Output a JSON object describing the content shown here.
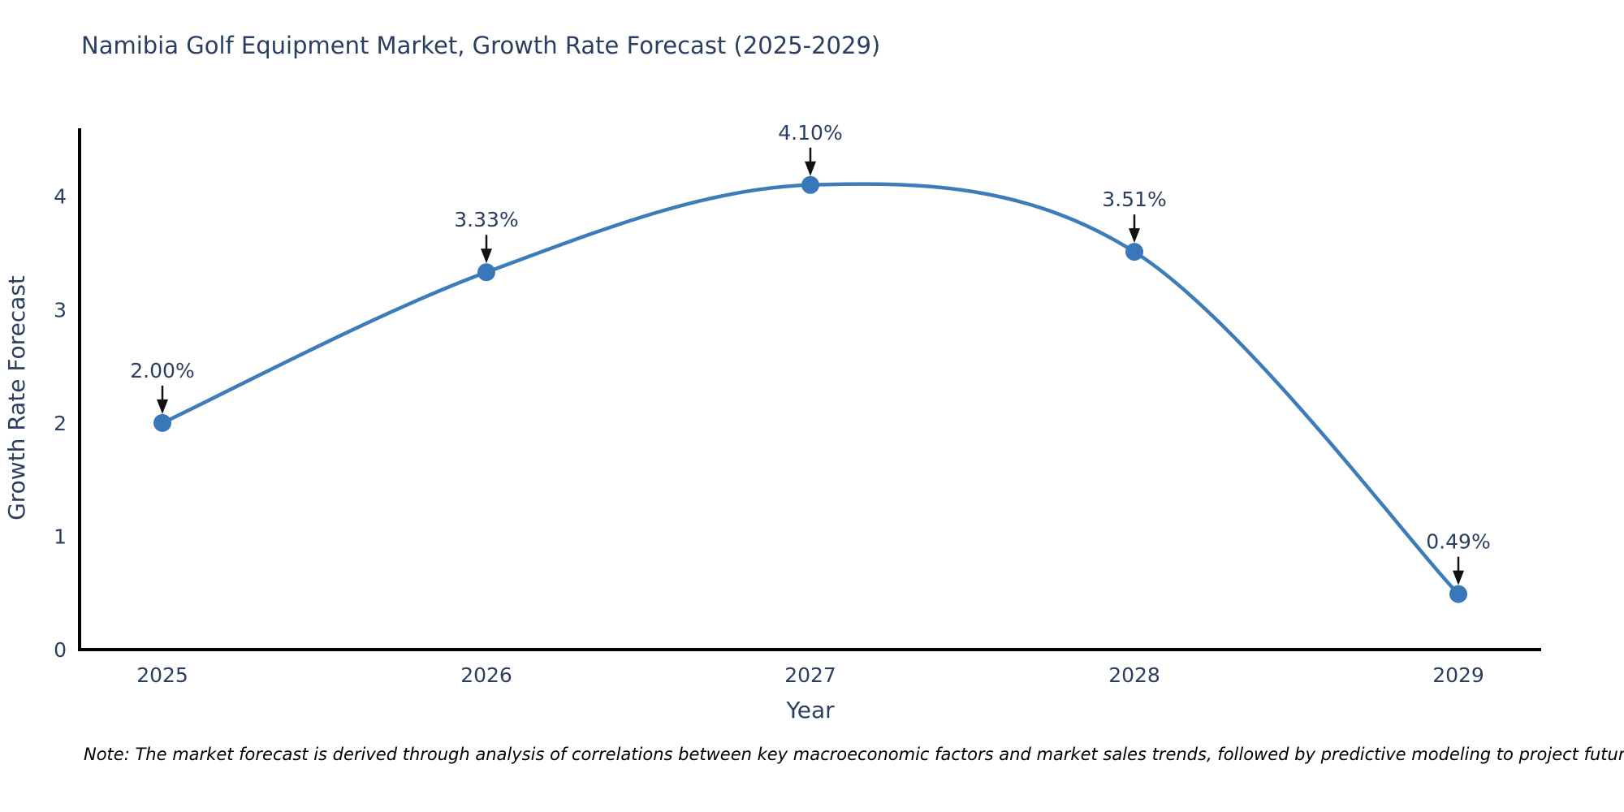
{
  "chart_data": {
    "type": "line",
    "title": "Namibia Golf Equipment Market, Growth Rate Forecast (2025-2029)",
    "categories": [
      "2025",
      "2026",
      "2027",
      "2028",
      "2029"
    ],
    "values": [
      2.0,
      3.33,
      4.1,
      3.51,
      0.49
    ],
    "point_labels": [
      "2.00%",
      "3.33%",
      "4.10%",
      "3.51%",
      "0.49%"
    ],
    "xlabel": "Year",
    "ylabel": "Growth Rate Forecast",
    "ylim": [
      0,
      4.6
    ],
    "yticks": [
      0,
      1,
      2,
      3,
      4
    ],
    "line_shape": "spline",
    "grid": false,
    "legend": "none",
    "line_color": "#3c7db9",
    "marker_color": "#3878b8",
    "arrow_color": "#111111",
    "axis_color": "#000000",
    "text_color": "#2a3f5f",
    "note": "Note: The market forecast is derived through analysis of correlations between key macroeconomic factors and market sales trends, followed by predictive modeling to project future sales."
  }
}
